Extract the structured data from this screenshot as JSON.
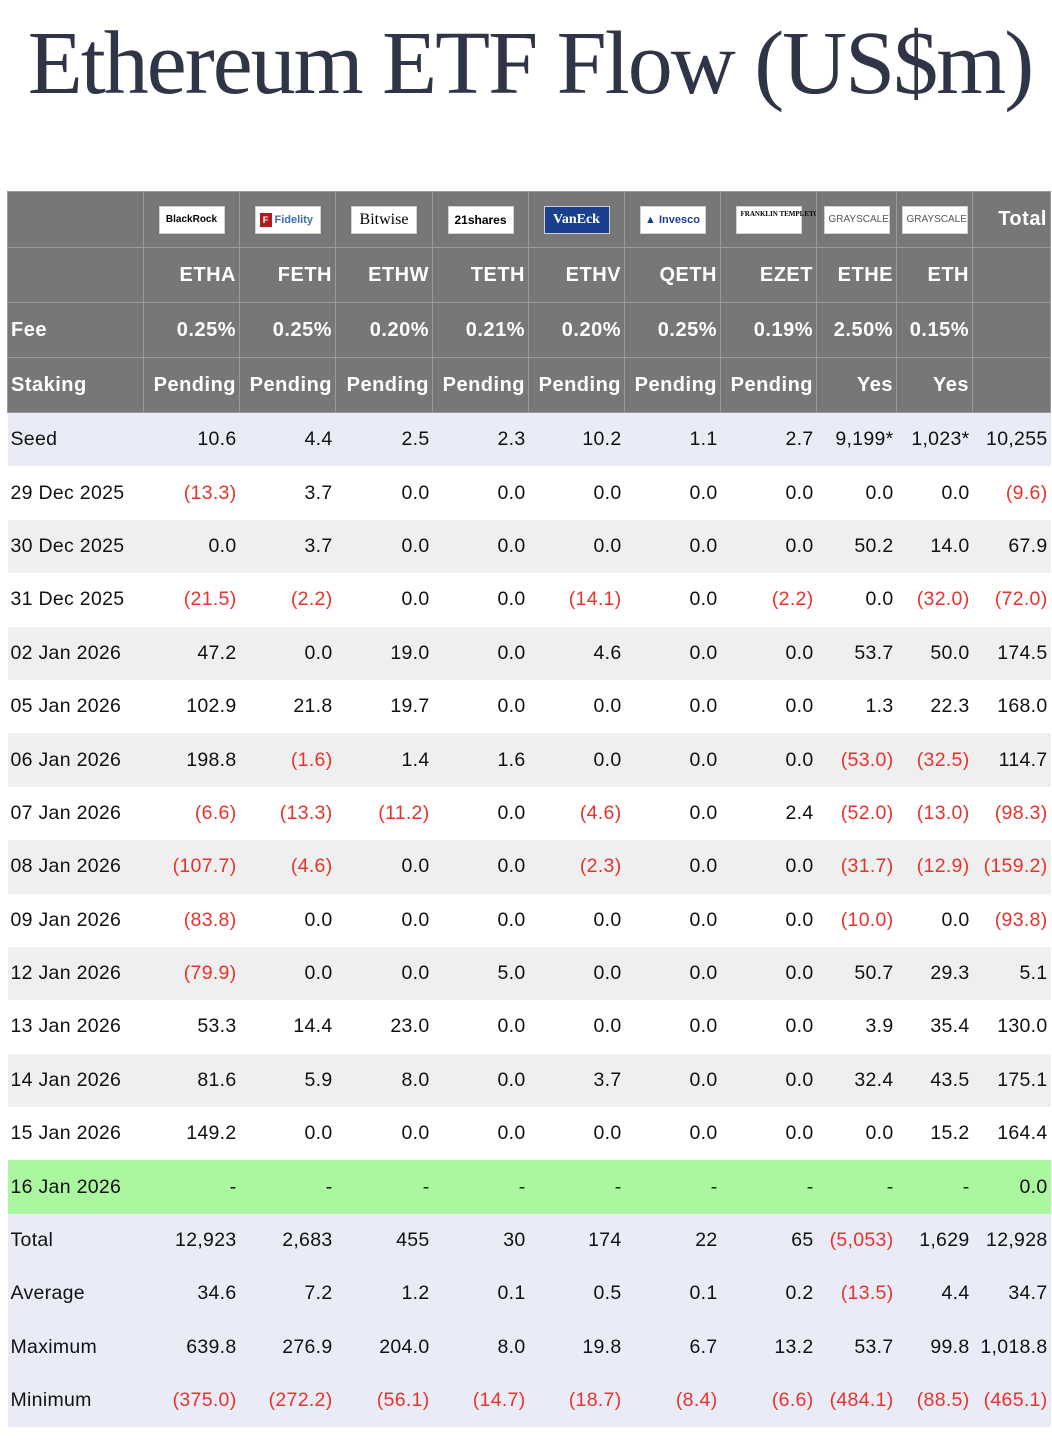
{
  "title": "Ethereum ETF Flow (US$m)",
  "issuers": [
    {
      "name": "BlackRock",
      "icon": "blackrock-logo"
    },
    {
      "name": "Fidelity",
      "icon": "fidelity-logo"
    },
    {
      "name": "Bitwise",
      "icon": "bitwise-logo"
    },
    {
      "name": "21shares",
      "icon": "21shares-logo"
    },
    {
      "name": "VanEck",
      "icon": "vaneck-logo"
    },
    {
      "name": "Invesco",
      "icon": "invesco-logo"
    },
    {
      "name": "FRANKLIN TEMPLETON",
      "icon": "franklin-templeton-logo"
    },
    {
      "name": "GRAYSCALE",
      "icon": "grayscale-logo"
    },
    {
      "name": "GRAYSCALE",
      "icon": "grayscale-logo"
    }
  ],
  "header": {
    "total_label": "Total",
    "tickers": [
      "ETHA",
      "FETH",
      "ETHW",
      "TETH",
      "ETHV",
      "QETH",
      "EZET",
      "ETHE",
      "ETH"
    ],
    "fee_label": "Fee",
    "fees": [
      "0.25%",
      "0.25%",
      "0.20%",
      "0.21%",
      "0.20%",
      "0.25%",
      "0.19%",
      "2.50%",
      "0.15%"
    ],
    "staking_label": "Staking",
    "staking": [
      "Pending",
      "Pending",
      "Pending",
      "Pending",
      "Pending",
      "Pending",
      "Pending",
      "Yes",
      "Yes"
    ]
  },
  "seed": {
    "label": "Seed",
    "values": [
      "10.6",
      "4.4",
      "2.5",
      "2.3",
      "10.2",
      "1.1",
      "2.7",
      "9,199*",
      "1,023*",
      "10,255"
    ]
  },
  "rows": [
    {
      "date": "29 Dec 2025",
      "values": [
        "(13.3)",
        "3.7",
        "0.0",
        "0.0",
        "0.0",
        "0.0",
        "0.0",
        "0.0",
        "0.0",
        "(9.6)"
      ]
    },
    {
      "date": "30 Dec 2025",
      "values": [
        "0.0",
        "3.7",
        "0.0",
        "0.0",
        "0.0",
        "0.0",
        "0.0",
        "50.2",
        "14.0",
        "67.9"
      ]
    },
    {
      "date": "31 Dec 2025",
      "values": [
        "(21.5)",
        "(2.2)",
        "0.0",
        "0.0",
        "(14.1)",
        "0.0",
        "(2.2)",
        "0.0",
        "(32.0)",
        "(72.0)"
      ]
    },
    {
      "date": "02 Jan 2026",
      "values": [
        "47.2",
        "0.0",
        "19.0",
        "0.0",
        "4.6",
        "0.0",
        "0.0",
        "53.7",
        "50.0",
        "174.5"
      ]
    },
    {
      "date": "05 Jan 2026",
      "values": [
        "102.9",
        "21.8",
        "19.7",
        "0.0",
        "0.0",
        "0.0",
        "0.0",
        "1.3",
        "22.3",
        "168.0"
      ]
    },
    {
      "date": "06 Jan 2026",
      "values": [
        "198.8",
        "(1.6)",
        "1.4",
        "1.6",
        "0.0",
        "0.0",
        "0.0",
        "(53.0)",
        "(32.5)",
        "114.7"
      ]
    },
    {
      "date": "07 Jan 2026",
      "values": [
        "(6.6)",
        "(13.3)",
        "(11.2)",
        "0.0",
        "(4.6)",
        "0.0",
        "2.4",
        "(52.0)",
        "(13.0)",
        "(98.3)"
      ]
    },
    {
      "date": "08 Jan 2026",
      "values": [
        "(107.7)",
        "(4.6)",
        "0.0",
        "0.0",
        "(2.3)",
        "0.0",
        "0.0",
        "(31.7)",
        "(12.9)",
        "(159.2)"
      ]
    },
    {
      "date": "09 Jan 2026",
      "values": [
        "(83.8)",
        "0.0",
        "0.0",
        "0.0",
        "0.0",
        "0.0",
        "0.0",
        "(10.0)",
        "0.0",
        "(93.8)"
      ]
    },
    {
      "date": "12 Jan 2026",
      "values": [
        "(79.9)",
        "0.0",
        "0.0",
        "5.0",
        "0.0",
        "0.0",
        "0.0",
        "50.7",
        "29.3",
        "5.1"
      ]
    },
    {
      "date": "13 Jan 2026",
      "values": [
        "53.3",
        "14.4",
        "23.0",
        "0.0",
        "0.0",
        "0.0",
        "0.0",
        "3.9",
        "35.4",
        "130.0"
      ]
    },
    {
      "date": "14 Jan 2026",
      "values": [
        "81.6",
        "5.9",
        "8.0",
        "0.0",
        "3.7",
        "0.0",
        "0.0",
        "32.4",
        "43.5",
        "175.1"
      ]
    },
    {
      "date": "15 Jan 2026",
      "values": [
        "149.2",
        "0.0",
        "0.0",
        "0.0",
        "0.0",
        "0.0",
        "0.0",
        "0.0",
        "15.2",
        "164.4"
      ]
    },
    {
      "date": "16 Jan 2026",
      "highlight": true,
      "values": [
        "-",
        "-",
        "-",
        "-",
        "-",
        "-",
        "-",
        "-",
        "-",
        "0.0"
      ]
    }
  ],
  "summary": [
    {
      "label": "Total",
      "values": [
        "12,923",
        "2,683",
        "455",
        "30",
        "174",
        "22",
        "65",
        "(5,053)",
        "1,629",
        "12,928"
      ]
    },
    {
      "label": "Average",
      "values": [
        "34.6",
        "7.2",
        "1.2",
        "0.1",
        "0.5",
        "0.1",
        "0.2",
        "(13.5)",
        "4.4",
        "34.7"
      ]
    },
    {
      "label": "Maximum",
      "values": [
        "639.8",
        "276.9",
        "204.0",
        "8.0",
        "19.8",
        "6.7",
        "13.2",
        "53.7",
        "99.8",
        "1,018.8"
      ]
    },
    {
      "label": "Minimum",
      "values": [
        "(375.0)",
        "(272.2)",
        "(56.1)",
        "(14.7)",
        "(18.7)",
        "(8.4)",
        "(6.6)",
        "(484.1)",
        "(88.5)",
        "(465.1)"
      ]
    }
  ],
  "colors": {
    "header_bg": "#777777",
    "negative": "#e8322b",
    "highlight_row": "#aaf7a0",
    "seed_summary_bg": "#e9ecf7",
    "alt_row": "#efefef"
  }
}
